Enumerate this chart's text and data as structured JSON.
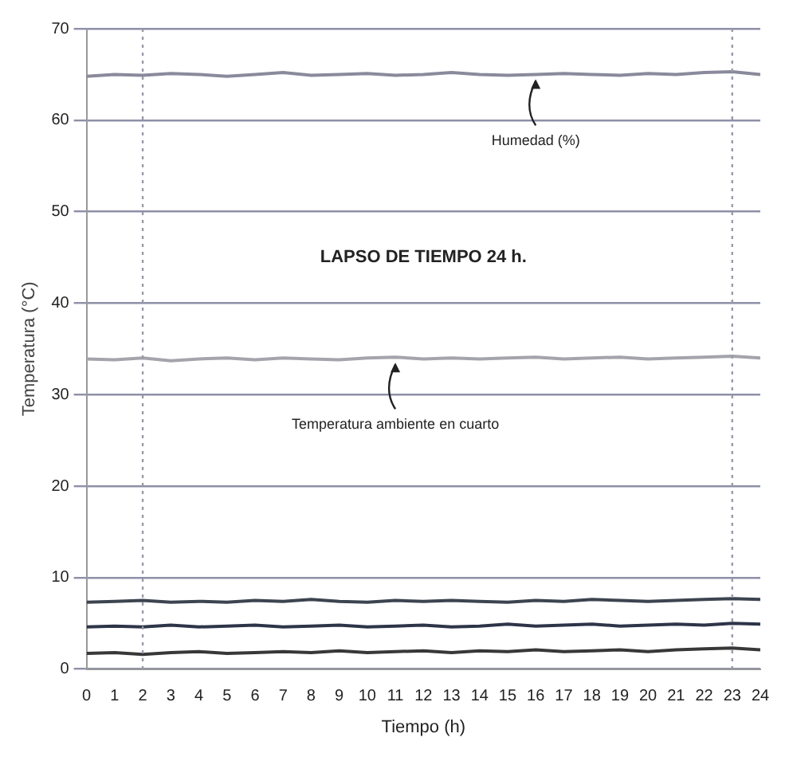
{
  "chart_data": {
    "type": "line",
    "xlabel": "Tiempo (h)",
    "ylabel": "Temperatura (°C)",
    "x": [
      0,
      1,
      2,
      3,
      4,
      5,
      6,
      7,
      8,
      9,
      10,
      11,
      12,
      13,
      14,
      15,
      16,
      17,
      18,
      19,
      20,
      21,
      22,
      23,
      24
    ],
    "xlim": [
      0,
      24
    ],
    "xticks": [
      0,
      1,
      2,
      3,
      4,
      5,
      6,
      7,
      8,
      9,
      10,
      11,
      12,
      13,
      14,
      15,
      16,
      17,
      18,
      19,
      20,
      21,
      22,
      23,
      24
    ],
    "ylim": [
      0,
      70
    ],
    "yticks": [
      0,
      10,
      20,
      30,
      40,
      50,
      60,
      70
    ],
    "grid": "y",
    "marker": "none",
    "line_style": "solid",
    "series": [
      {
        "color": "#8a8a9c",
        "values": [
          64.8,
          65,
          64.9,
          65.1,
          65,
          64.8,
          65,
          65.2,
          64.9,
          65,
          65.1,
          64.9,
          65,
          65.2,
          65,
          64.9,
          65,
          65.1,
          65,
          64.9,
          65.1,
          65,
          65.2,
          65.3,
          65
        ]
      },
      {
        "color": "#a4a4ac",
        "values": [
          33.9,
          33.8,
          34,
          33.7,
          33.9,
          34,
          33.8,
          34,
          33.9,
          33.8,
          34,
          34.1,
          33.9,
          34,
          33.9,
          34,
          34.1,
          33.9,
          34,
          34.1,
          33.9,
          34,
          34.1,
          34.2,
          34
        ]
      },
      {
        "color": "#3c4450",
        "values": [
          7.3,
          7.4,
          7.5,
          7.3,
          7.4,
          7.3,
          7.5,
          7.4,
          7.6,
          7.4,
          7.3,
          7.5,
          7.4,
          7.5,
          7.4,
          7.3,
          7.5,
          7.4,
          7.6,
          7.5,
          7.4,
          7.5,
          7.6,
          7.7,
          7.6
        ]
      },
      {
        "color": "#2e3448",
        "values": [
          4.6,
          4.7,
          4.6,
          4.8,
          4.6,
          4.7,
          4.8,
          4.6,
          4.7,
          4.8,
          4.6,
          4.7,
          4.8,
          4.6,
          4.7,
          4.9,
          4.7,
          4.8,
          4.9,
          4.7,
          4.8,
          4.9,
          4.8,
          5,
          4.9
        ]
      },
      {
        "color": "#383838",
        "values": [
          1.7,
          1.8,
          1.6,
          1.8,
          1.9,
          1.7,
          1.8,
          1.9,
          1.8,
          2,
          1.8,
          1.9,
          2,
          1.8,
          2,
          1.9,
          2.1,
          1.9,
          2,
          2.1,
          1.9,
          2.1,
          2.2,
          2.3,
          2.1
        ]
      }
    ],
    "ref_lines": [
      {
        "axis": "x",
        "value": 2,
        "color": "#9a9aa8",
        "line_style": "dotted"
      },
      {
        "axis": "x",
        "value": 23,
        "color": "#9a9aa8",
        "line_style": "dotted"
      }
    ],
    "annotations": [
      "LAPSO DE TIEMPO 24 h.",
      {
        "text": "Humedad (%)",
        "x": 16,
        "y": 65
      },
      {
        "text": "Temperatura ambiente en cuarto",
        "x": 11,
        "y": 34
      }
    ]
  }
}
